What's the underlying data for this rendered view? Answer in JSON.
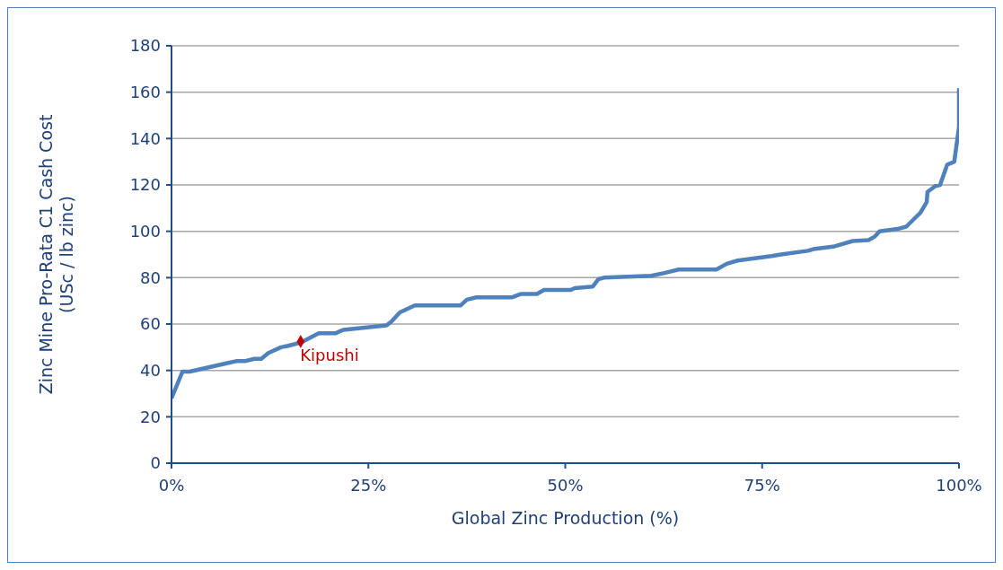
{
  "chart_data": {
    "type": "line",
    "xlabel": "Global Zinc Production (%)",
    "ylabel": "Zinc Mine Pro-Rata C1 Cash Cost\n(USc / lb zinc)",
    "xlim": [
      0,
      100
    ],
    "xticks": [
      {
        "value": 0,
        "label": "0%"
      },
      {
        "value": 25,
        "label": "25%"
      },
      {
        "value": 50,
        "label": "50%"
      },
      {
        "value": 75,
        "label": "75%"
      },
      {
        "value": 100,
        "label": "100%"
      }
    ],
    "ylim": [
      0,
      180
    ],
    "yticks": [
      0,
      20,
      40,
      60,
      80,
      100,
      120,
      140,
      160,
      180
    ],
    "grid": "y",
    "legend": false,
    "marker": "none",
    "series": [
      {
        "color": "#4f81bd",
        "x": [
          0,
          1.4,
          2.3,
          8.2,
          9.3,
          10.5,
          11.4,
          12.3,
          13.9,
          14.8,
          16.4,
          18.7,
          20.8,
          21.8,
          27.3,
          27.9,
          29,
          30.9,
          32.8,
          36.7,
          37.5,
          38.7,
          43.2,
          44.4,
          46.4,
          47.3,
          50.7,
          51.2,
          53.5,
          54.2,
          54.9,
          60.9,
          62.6,
          64.4,
          69.2,
          70.5,
          71.9,
          76.2,
          77.4,
          80.8,
          81.5,
          84.2,
          86.5,
          88.5,
          89.3,
          89.9,
          92.2,
          93.3,
          94.2,
          95.1,
          95.9,
          96,
          97,
          97.6,
          98.5,
          99.4,
          100,
          100
        ],
        "values": [
          28,
          39.5,
          39.5,
          44,
          44,
          45,
          45,
          47.5,
          50,
          50.6,
          52,
          56,
          56,
          57.5,
          59.4,
          61,
          65,
          68,
          68,
          68,
          70.5,
          71.5,
          71.5,
          73,
          73,
          74.7,
          74.7,
          75.5,
          76.2,
          79.3,
          80,
          80.8,
          82,
          83.5,
          83.5,
          86,
          87.4,
          89.3,
          90,
          91.6,
          92.3,
          93.5,
          95.8,
          96.2,
          97.7,
          100,
          101,
          102,
          105,
          108,
          112.6,
          117,
          119.5,
          120,
          128.7,
          130,
          145,
          161.7
        ]
      },
      {
        "type": "scatter",
        "name": "Kipushi",
        "color": "#c00000",
        "marker": "diamond",
        "x": [
          16.4
        ],
        "values": [
          52.5
        ]
      }
    ]
  }
}
